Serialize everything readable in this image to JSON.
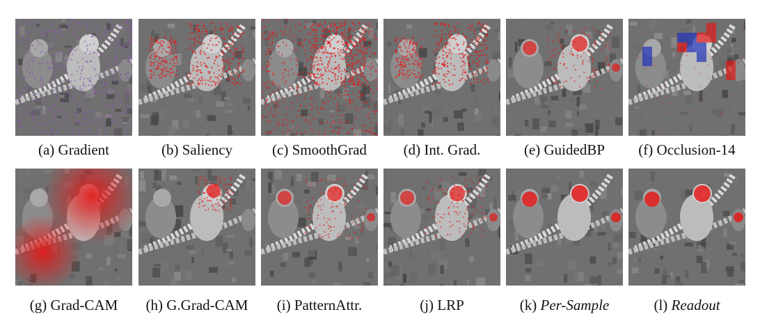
{
  "figure": {
    "panels": [
      {
        "letter": "(a)",
        "method": "Gradient",
        "italic": false,
        "overlay": "purple-noise"
      },
      {
        "letter": "(b)",
        "method": "Saliency",
        "italic": false,
        "overlay": "red-speckle"
      },
      {
        "letter": "(c)",
        "method": "SmoothGrad",
        "italic": false,
        "overlay": "red-dense"
      },
      {
        "letter": "(d)",
        "method": "Int. Grad.",
        "italic": false,
        "overlay": "red-speckle"
      },
      {
        "letter": "(e)",
        "method": "GuidedBP",
        "italic": false,
        "overlay": "red-faces"
      },
      {
        "letter": "(f)",
        "method": "Occlusion-14",
        "italic": false,
        "overlay": "blocks"
      },
      {
        "letter": "(g)",
        "method": "Grad-CAM",
        "italic": false,
        "overlay": "red-blob"
      },
      {
        "letter": "(h)",
        "method": "G.Grad-CAM",
        "italic": false,
        "overlay": "red-face-small"
      },
      {
        "letter": "(i)",
        "method": "PatternAttr.",
        "italic": false,
        "overlay": "red-faces"
      },
      {
        "letter": "(j)",
        "method": "LRP",
        "italic": false,
        "overlay": "red-faces"
      },
      {
        "letter": "(k)",
        "method": "Per-Sample",
        "italic": true,
        "overlay": "red-faces-strong"
      },
      {
        "letter": "(l)",
        "method": "Readout",
        "italic": true,
        "overlay": "red-faces-strong"
      }
    ],
    "colors": {
      "attribution_red": "#e21a1a",
      "attribution_blue": "#2233bb",
      "attribution_purple": "#8a4fb0"
    }
  }
}
